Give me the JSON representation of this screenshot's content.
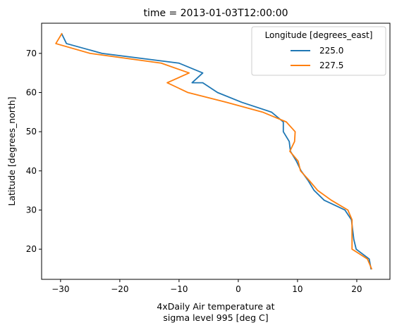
{
  "chart_data": {
    "type": "line",
    "title": "time = 2013-01-03T12:00:00",
    "xlabel": [
      "4xDaily Air temperature at",
      "sigma level 995 [deg C]"
    ],
    "ylabel": "Latitude [degrees_north]",
    "xlim": [
      -33.2,
      25.6
    ],
    "ylim": [
      12.3,
      77.7
    ],
    "x_ticks": [
      -30,
      -20,
      -10,
      0,
      10,
      20
    ],
    "x_tick_labels": [
      "−30",
      "−20",
      "−10",
      "0",
      "10",
      "20"
    ],
    "y_ticks": [
      20,
      30,
      40,
      50,
      60,
      70
    ],
    "y_tick_labels": [
      "20",
      "30",
      "40",
      "50",
      "60",
      "70"
    ],
    "grid": false,
    "legend": {
      "title": "Longitude [degrees_east]",
      "position": "top-right"
    },
    "series": [
      {
        "name": "225.0",
        "color": "#1f77b4",
        "points": [
          [
            22.4,
            15.0
          ],
          [
            22.1,
            17.5
          ],
          [
            19.9,
            20.0
          ],
          [
            19.5,
            22.5
          ],
          [
            19.3,
            25.0
          ],
          [
            19.1,
            27.5
          ],
          [
            18.0,
            30.0
          ],
          [
            14.5,
            32.5
          ],
          [
            12.8,
            35.0
          ],
          [
            11.8,
            37.5
          ],
          [
            10.6,
            40.0
          ],
          [
            9.8,
            42.5
          ],
          [
            8.8,
            45.0
          ],
          [
            8.6,
            47.5
          ],
          [
            7.6,
            50.0
          ],
          [
            7.6,
            52.5
          ],
          [
            5.6,
            55.0
          ],
          [
            0.6,
            57.5
          ],
          [
            -3.5,
            60.0
          ],
          [
            -6.0,
            62.5
          ],
          [
            -7.8,
            62.5
          ],
          [
            -6.0,
            65.0
          ],
          [
            -10.0,
            67.5
          ],
          [
            -23.0,
            70.0
          ],
          [
            -29.0,
            72.5
          ],
          [
            -29.8,
            75.0
          ]
        ]
      },
      {
        "name": "227.5",
        "color": "#ff7f0e",
        "points": [
          [
            22.5,
            15.0
          ],
          [
            21.8,
            17.5
          ],
          [
            19.2,
            20.0
          ],
          [
            19.2,
            22.5
          ],
          [
            19.2,
            25.0
          ],
          [
            19.2,
            27.5
          ],
          [
            18.5,
            30.0
          ],
          [
            15.7,
            32.5
          ],
          [
            13.4,
            35.0
          ],
          [
            12.0,
            37.5
          ],
          [
            10.5,
            40.0
          ],
          [
            10.1,
            42.5
          ],
          [
            8.7,
            45.0
          ],
          [
            9.5,
            47.5
          ],
          [
            9.6,
            50.0
          ],
          [
            8.1,
            52.5
          ],
          [
            4.1,
            55.0
          ],
          [
            -2.0,
            57.5
          ],
          [
            -8.5,
            60.0
          ],
          [
            -12.0,
            62.5
          ],
          [
            -8.3,
            65.0
          ],
          [
            -13.0,
            67.5
          ],
          [
            -25.0,
            70.0
          ],
          [
            -30.8,
            72.5
          ],
          [
            -29.8,
            75.0
          ]
        ]
      }
    ]
  }
}
